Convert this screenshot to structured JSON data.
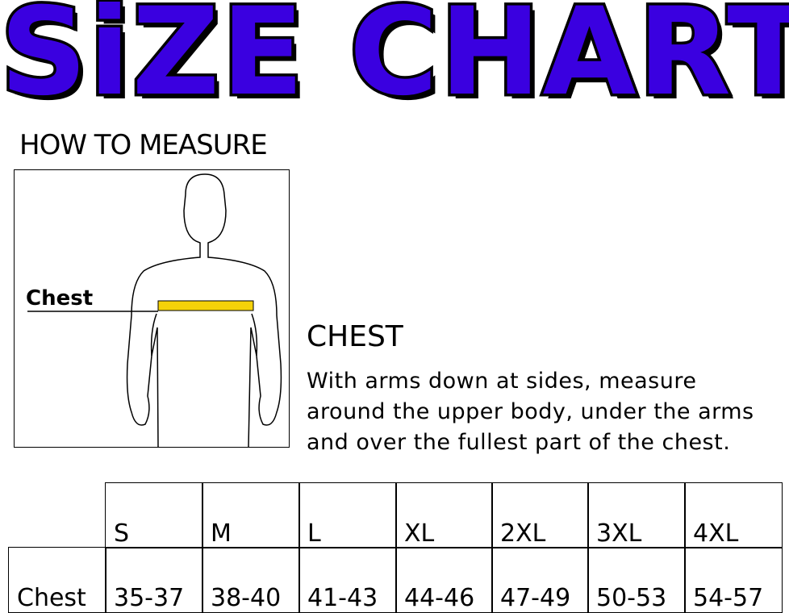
{
  "title": "SiZE CHART",
  "title_color": "#3a00e0",
  "how_to_measure": "HOW TO MEASURE",
  "figure": {
    "chest_label": "Chest",
    "tape_color": "#f5d20a"
  },
  "section": {
    "title": "CHEST",
    "lines": [
      "With arms down at sides, measure",
      "around the upper body, under the arms",
      "and over the fullest part of the chest."
    ]
  },
  "table": {
    "row_label": "Chest",
    "sizes": [
      "S",
      "M",
      "L",
      "XL",
      "2XL",
      "3XL",
      "4XL"
    ],
    "values": [
      "35-37",
      "38-40",
      "41-43",
      "44-46",
      "47-49",
      "50-53",
      "54-57"
    ]
  }
}
